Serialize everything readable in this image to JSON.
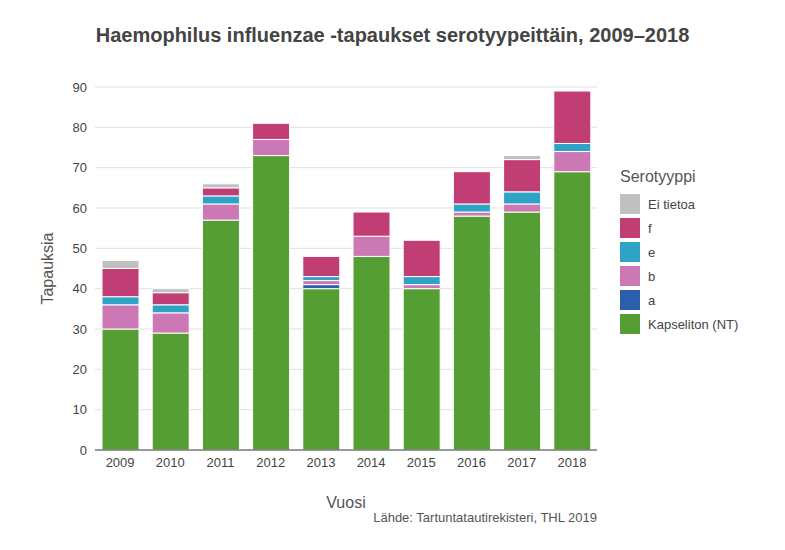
{
  "chart_data": {
    "type": "bar",
    "title": "Haemophilus influenzae -tapaukset serotyypeittäin, 2009–2018",
    "x_label": "Vuosi",
    "y_label": "Tapauksia",
    "source": "Lähde: Tartuntatautirekisteri, THL 2019",
    "legend_title": "Serotyyppi",
    "legend": "right",
    "stacked": true,
    "grid": true,
    "categories": [
      "2009",
      "2010",
      "2011",
      "2012",
      "2013",
      "2014",
      "2015",
      "2016",
      "2017",
      "2018"
    ],
    "series": [
      {
        "name": "Kapseliton (NT)",
        "color": "#559e33",
        "values": [
          30,
          29,
          57,
          73,
          40,
          48,
          40,
          58,
          59,
          69
        ]
      },
      {
        "name": "a",
        "color": "#2b5fab",
        "values": [
          0,
          0,
          0,
          0,
          1,
          0,
          0,
          0,
          0,
          0
        ]
      },
      {
        "name": "b",
        "color": "#cc78b5",
        "values": [
          6,
          5,
          4,
          4,
          1,
          5,
          1,
          1,
          2,
          5
        ]
      },
      {
        "name": "e",
        "color": "#2ea3c6",
        "values": [
          2,
          2,
          2,
          0,
          1,
          0,
          2,
          2,
          3,
          2
        ]
      },
      {
        "name": "f",
        "color": "#c03e73",
        "values": [
          7,
          3,
          2,
          4,
          5,
          6,
          9,
          8,
          8,
          13
        ]
      },
      {
        "name": "Ei tietoa",
        "color": "#c0c0c0",
        "values": [
          2,
          1,
          1,
          0,
          0,
          0,
          0,
          0,
          1,
          0
        ]
      }
    ],
    "ylim": [
      0,
      90
    ],
    "yticks": [
      0,
      10,
      20,
      30,
      40,
      50,
      60,
      70,
      80,
      90
    ]
  }
}
